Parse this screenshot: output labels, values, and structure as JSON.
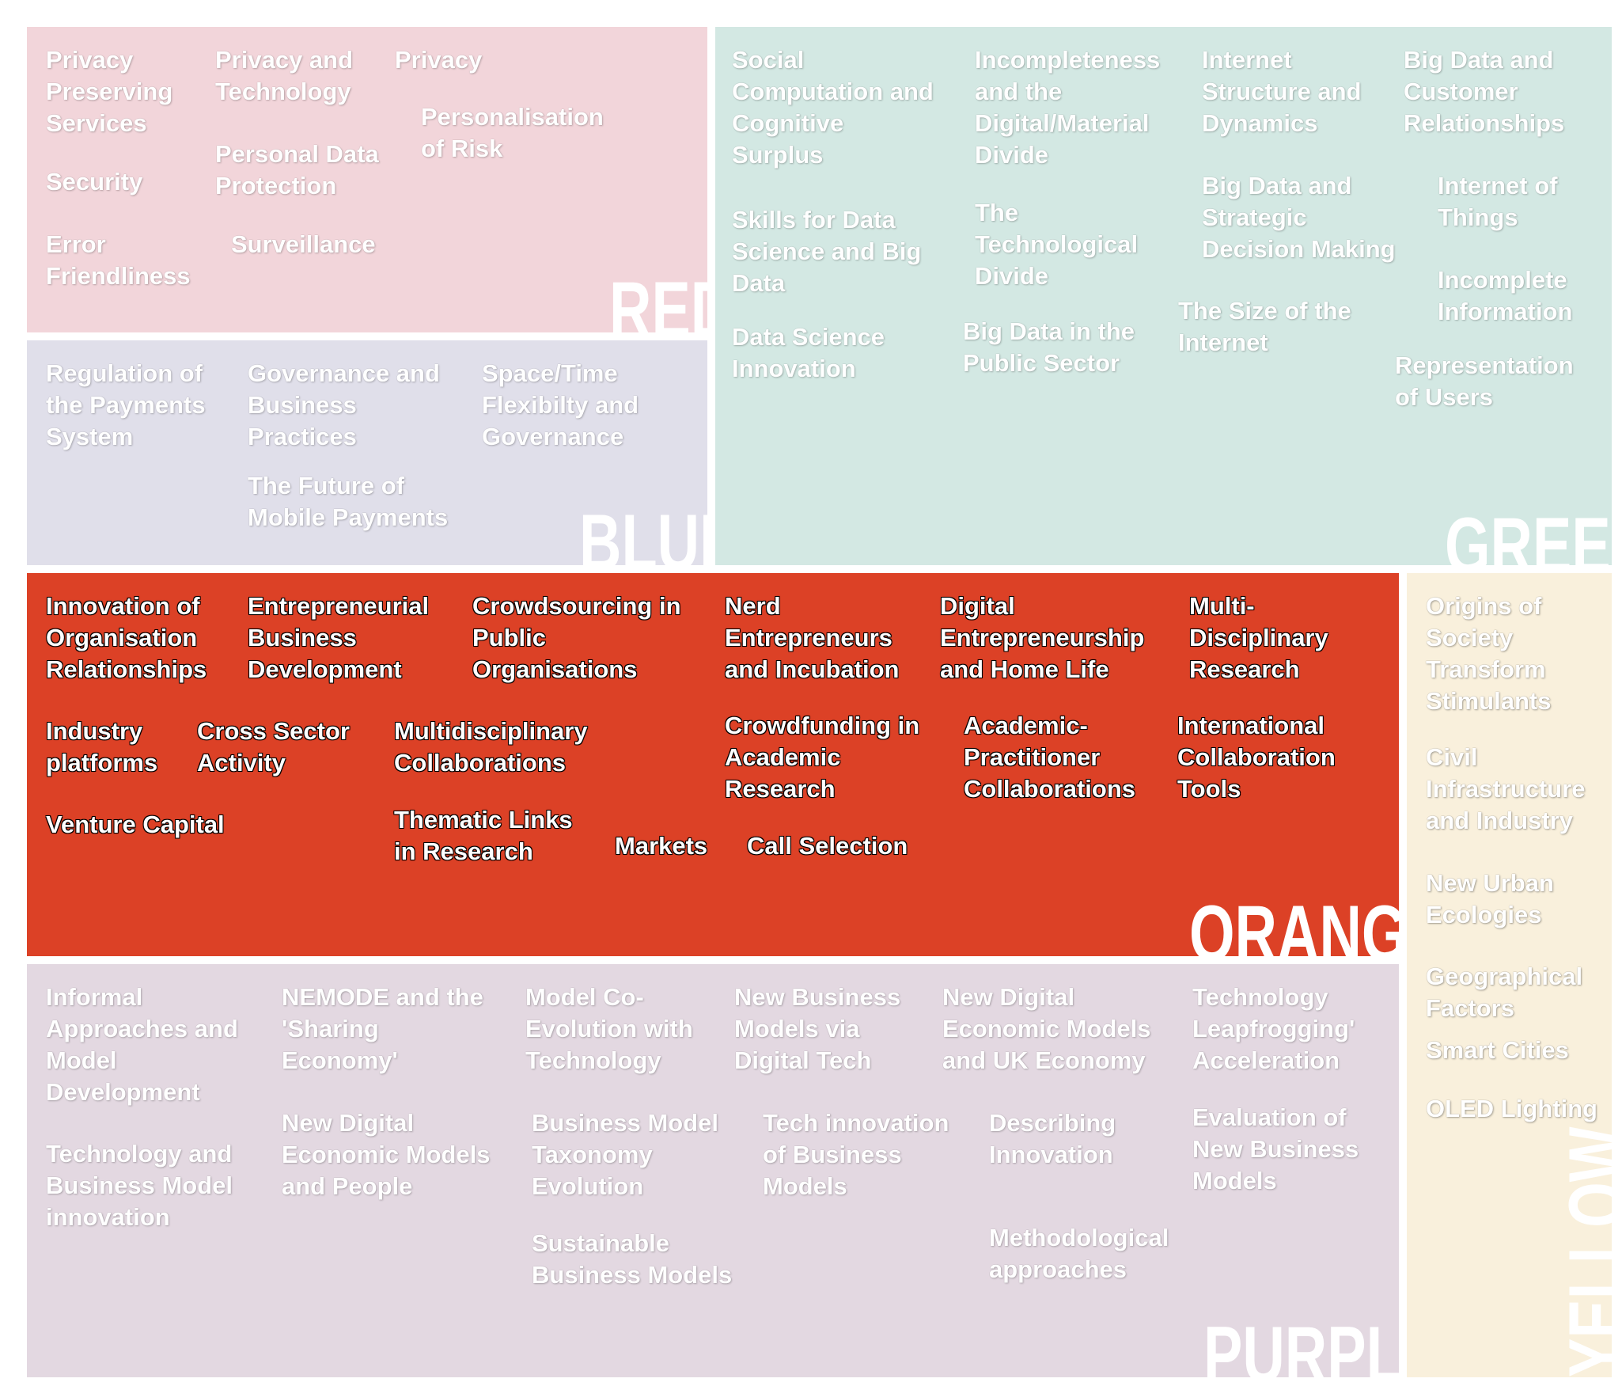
{
  "panels": {
    "red": {
      "label": "RED",
      "color": "#f2d5da",
      "topics": [
        "Privacy\nPreserving\nServices",
        "Privacy and\nTechnology",
        "Privacy",
        "Personalisation\nof Risk",
        "Personal Data\nProtection",
        "Security",
        "Error\nFriendliness",
        "Surveillance"
      ]
    },
    "blue": {
      "label": "BLUE",
      "color": "#e0dfea",
      "topics": [
        "Regulation of\nthe Payments\nSystem",
        "Governance and\nBusiness\nPractices",
        "Space/Time\nFlexibilty and\nGovernance",
        "The Future of\nMobile Payments"
      ]
    },
    "green": {
      "label": "GREEN",
      "color": "#d3e8e3",
      "topics": [
        "Social\nComputation and\nCognitive\nSurplus",
        "Incompleteness\nand the\nDigital/Material\nDivide",
        "Internet\nStructure and\nDynamics",
        "Big Data and\nCustomer\nRelationships",
        "Big Data and\nStrategic\nDecision Making",
        "Internet of\nThings",
        "Skills for Data\nScience and Big\nData",
        "The\nTechnological\nDivide",
        "Incomplete\nInformation",
        "The Size of the\nInternet",
        "Data Science\nInnovation",
        "Big Data in the\nPublic Sector",
        "Representation\nof Users"
      ]
    },
    "orange": {
      "label": "ORANGE",
      "color": "#dc4126",
      "topics": [
        "Innovation of\nOrganisation\nRelationships",
        "Entrepreneurial\nBusiness\nDevelopment",
        "Crowdsourcing in\nPublic\nOrganisations",
        "Nerd\nEntrepreneurs\nand Incubation",
        "Digital\nEntrepreneurship\nand Home Life",
        "Multi-\nDisciplinary\nResearch",
        "Industry\nplatforms",
        "Cross Sector\nActivity",
        "Multidisciplinary\nCollaborations",
        "Crowdfunding in\nAcademic\nResearch",
        "Academic-\nPractitioner\nCollaborations",
        "International\nCollaboration\nTools",
        "Venture Capital",
        "Thematic Links\nin Research",
        "Markets",
        "Call Selection"
      ]
    },
    "yellow": {
      "label": "YELLOW",
      "color": "#f9f0dc",
      "topics": [
        "Origins of\nSociety\nTransform\nStimulants",
        "Civil\nInfrastructure\nand Industry",
        "New Urban\nEcologies",
        "Geographical\nFactors",
        "Smart Cities",
        "OLED Lighting"
      ]
    },
    "purple": {
      "label": "PURPLE",
      "color": "#e3d8e1",
      "topics": [
        "Informal\nApproaches and\nModel\nDevelopment",
        "NEMODE and the\n'Sharing\nEconomy'",
        "Model Co-\nEvolution with\nTechnology",
        "New Business\nModels via\nDigital Tech",
        "New Digital\nEconomic Models\nand UK Economy",
        "Technology\nLeapfrogging'\nAcceleration",
        "New Digital\nEconomic Models\nand People",
        "Business Model\nTaxonomy\nEvolution",
        "Tech innovation\nof Business\nModels",
        "Describing\nInnovation",
        "Evaluation of\nNew Business\nModels",
        "Technology and\nBusiness Model\ninnovation",
        "Sustainable\nBusiness Models",
        "Methodological\napproaches"
      ]
    }
  }
}
